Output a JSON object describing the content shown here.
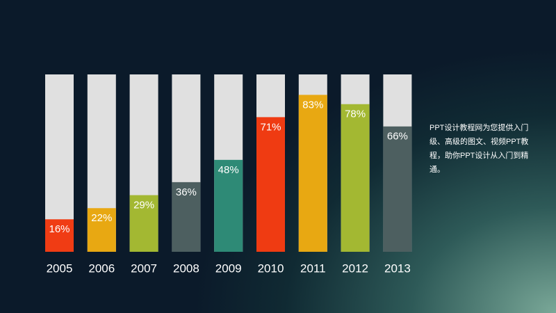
{
  "chart_data": {
    "type": "bar",
    "categories": [
      "2005",
      "2006",
      "2007",
      "2008",
      "2009",
      "2010",
      "2011",
      "2012",
      "2013"
    ],
    "values": [
      16,
      22,
      29,
      36,
      48,
      71,
      83,
      78,
      66
    ],
    "value_labels": [
      "16%",
      "22%",
      "29%",
      "36%",
      "48%",
      "71%",
      "83%",
      "78%",
      "66%"
    ],
    "colors": [
      "#f03c14",
      "#e8a812",
      "#a3b832",
      "#4d5f60",
      "#2e8a76",
      "#ef3b12",
      "#e8a812",
      "#a3b832",
      "#4d5f60"
    ],
    "ylim": [
      0,
      100
    ],
    "annotation": "PPT设计教程网为您提供入门级、高级的图文、视频PPT教程，助你PPT设计从入门到精通。"
  }
}
